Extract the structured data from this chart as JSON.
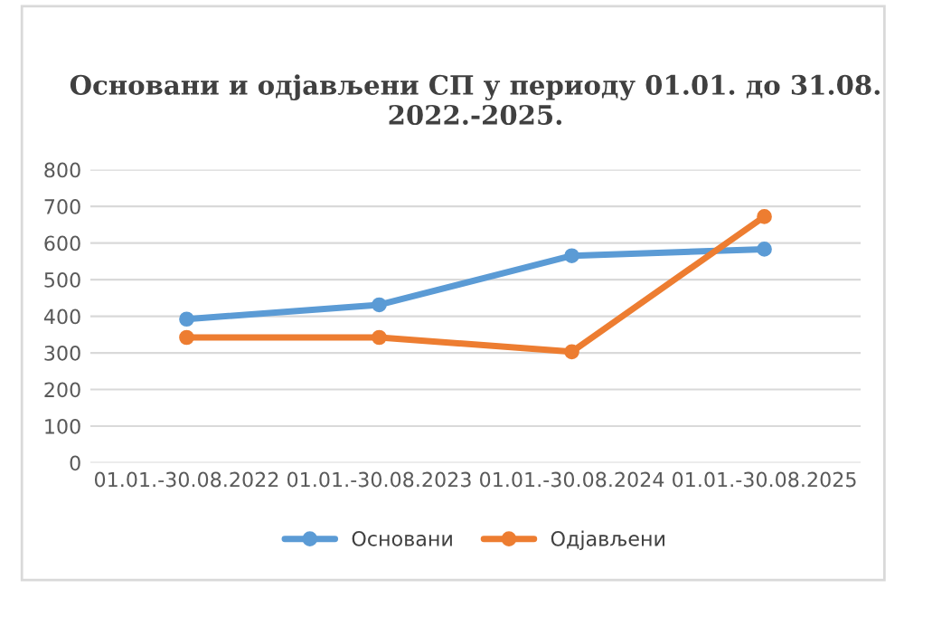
{
  "chart_data": {
    "type": "line",
    "title": "Основани и одјављени СП у периоду 01.01. до 31.08.\n2022.-2025.",
    "categories": [
      "01.01.-30.08.2022",
      "01.01.-30.08.2023",
      "01.01.-30.08.2024",
      "01.01.-30.08.2025"
    ],
    "series": [
      {
        "name": "Основани",
        "color": "#5b9bd5",
        "values": [
          392,
          431,
          565,
          583
        ]
      },
      {
        "name": "Одјављени",
        "color": "#ed7d31",
        "values": [
          342,
          342,
          303,
          672
        ]
      }
    ],
    "ylim": [
      0,
      800
    ],
    "yticks": [
      0,
      100,
      200,
      300,
      400,
      500,
      600,
      700,
      800
    ],
    "grid": "y",
    "legend": "bottom",
    "marker": "circle",
    "line_style": "solid"
  }
}
